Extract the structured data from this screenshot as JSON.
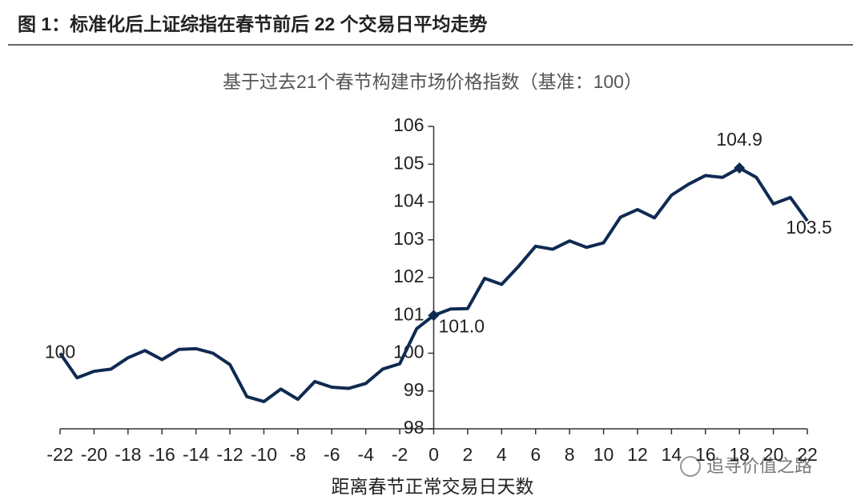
{
  "chart_data": {
    "type": "line",
    "title": "图 1：标准化后上证综指在春节前后 22 个交易日平均走势",
    "subtitle": "基于过去21个春节构建市场价格指数（基准：100）",
    "x_label": "距离春节正常交易日天数",
    "watermark": "追寻价值之路",
    "x": [
      -22,
      -21,
      -20,
      -19,
      -18,
      -17,
      -16,
      -15,
      -14,
      -13,
      -12,
      -11,
      -10,
      -9,
      -8,
      -7,
      -6,
      -5,
      -4,
      -3,
      -2,
      -1,
      0,
      1,
      2,
      3,
      4,
      5,
      6,
      7,
      8,
      9,
      10,
      11,
      12,
      13,
      14,
      15,
      16,
      17,
      18,
      19,
      20,
      21,
      22
    ],
    "series": [
      {
        "color": "#0f2a52",
        "values": [
          100.0,
          99.35,
          99.52,
          99.58,
          99.88,
          100.07,
          99.83,
          100.1,
          100.12,
          100.0,
          99.7,
          98.85,
          98.72,
          99.05,
          98.78,
          99.25,
          99.1,
          99.07,
          99.2,
          99.58,
          99.72,
          100.65,
          101.0,
          101.17,
          101.18,
          101.98,
          101.82,
          102.3,
          102.83,
          102.75,
          102.97,
          102.8,
          102.92,
          103.6,
          103.8,
          103.58,
          104.18,
          104.47,
          104.7,
          104.65,
          104.9,
          104.65,
          103.95,
          104.12,
          103.5
        ],
        "value_labels": [
          "100",
          null,
          null,
          null,
          null,
          null,
          null,
          null,
          null,
          null,
          null,
          null,
          null,
          null,
          null,
          null,
          null,
          null,
          null,
          null,
          null,
          null,
          "101.0",
          null,
          null,
          null,
          null,
          null,
          null,
          null,
          null,
          null,
          null,
          null,
          null,
          null,
          null,
          null,
          null,
          null,
          "104.9",
          null,
          null,
          null,
          "103.5"
        ]
      }
    ],
    "xlim": [
      -22,
      22
    ],
    "ylim": [
      98,
      106
    ],
    "xticks": [
      -22,
      -20,
      -18,
      -16,
      -14,
      -12,
      -10,
      -8,
      -6,
      -4,
      -2,
      0,
      2,
      4,
      6,
      8,
      10,
      12,
      14,
      16,
      18,
      20,
      22
    ],
    "yticks": [
      98,
      99,
      100,
      101,
      102,
      103,
      104,
      105,
      106
    ]
  }
}
